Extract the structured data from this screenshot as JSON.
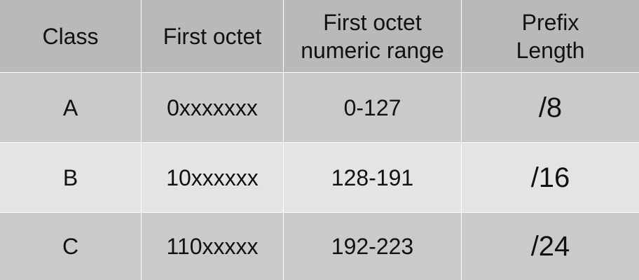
{
  "table": {
    "headers": [
      "Class",
      "First octet",
      "First octet\nnumeric range",
      "Prefix\nLength"
    ],
    "rows": [
      [
        "A",
        "0xxxxxxx",
        "0-127",
        "/8"
      ],
      [
        "B",
        "10xxxxxx",
        "128-191",
        "/16"
      ],
      [
        "C",
        "110xxxxx",
        "192-223",
        "/24"
      ]
    ]
  }
}
